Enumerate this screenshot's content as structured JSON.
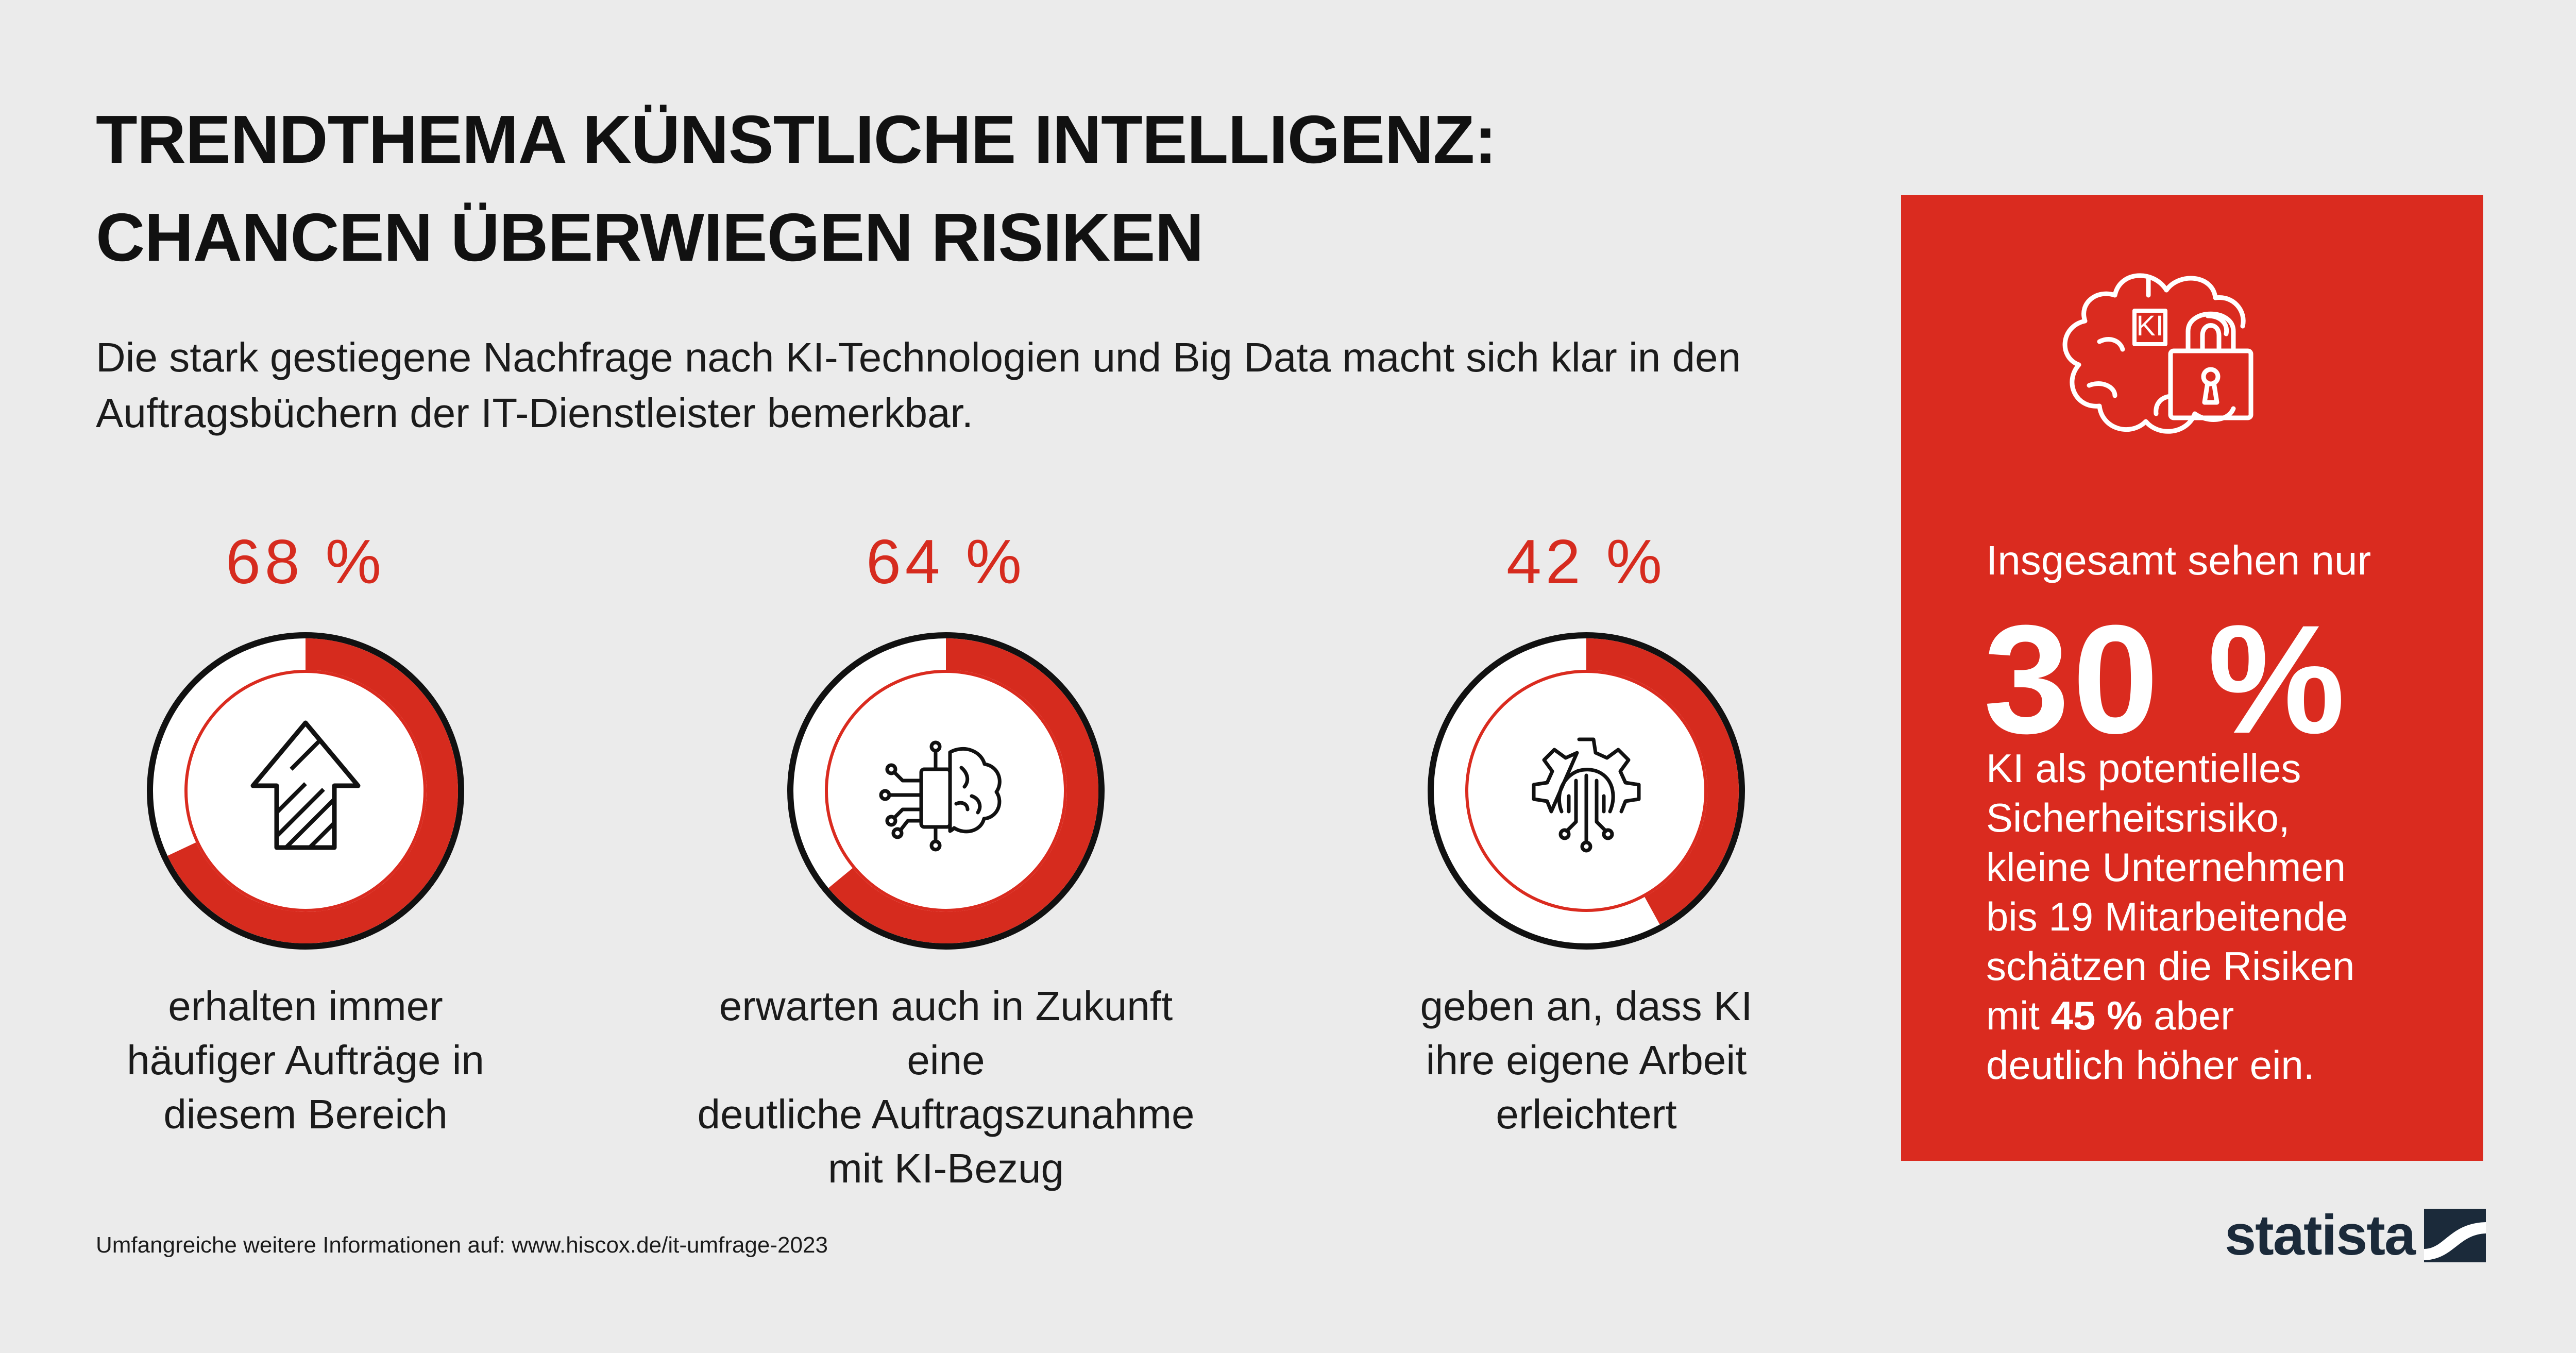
{
  "title": {
    "line1": "TRENDTHEMA KÜNSTLICHE INTELLIGENZ:",
    "line2": "CHANCEN ÜBERWIEGEN RISIKEN"
  },
  "intro": "Die stark gestiegene Nachfrage nach KI-Technologien und Big Data macht sich klar in den Auftragsbüchern der IT-Dienstleister bemerkbar.",
  "colors": {
    "accent": "#da2b1f",
    "ring": "#d62b1e",
    "background": "#ebebeb",
    "dark": "#111111",
    "logo": "#1b2a3a"
  },
  "chart_data": {
    "type": "donut",
    "unit": "%",
    "items": [
      {
        "value": 68,
        "label": "68 %",
        "icon": "arrow-up-icon",
        "description": [
          "erhalten immer",
          "häufiger Aufträge in",
          "diesem Bereich"
        ]
      },
      {
        "value": 64,
        "label": "64 %",
        "icon": "ai-brain-chip-icon",
        "description": [
          "erwarten auch in Zukunft eine",
          "deutliche Auftragszunahme",
          "mit KI-Bezug"
        ]
      },
      {
        "value": 42,
        "label": "42 %",
        "icon": "ai-gear-circuit-icon",
        "description": [
          "geben an, dass KI",
          "ihre eigene Arbeit",
          "erleichtert"
        ]
      }
    ]
  },
  "panel": {
    "icon": "brain-lock-icon",
    "icon_text": "KI",
    "lead": "Insgesamt sehen nur",
    "big_value": "30 %",
    "body_lines": [
      "KI als potentielles",
      "Sicherheitsrisiko,",
      "kleine Unternehmen",
      "bis 19 Mitarbeitende",
      "schätzen die Risiken"
    ],
    "line6_prefix": "mit ",
    "line6_bold": "45 %",
    "line6_suffix": " aber",
    "line7": "deutlich höher ein."
  },
  "footer": "Umfangreiche weitere Informationen auf: www.hiscox.de/it-umfrage-2023",
  "logo": {
    "text": "statista"
  }
}
